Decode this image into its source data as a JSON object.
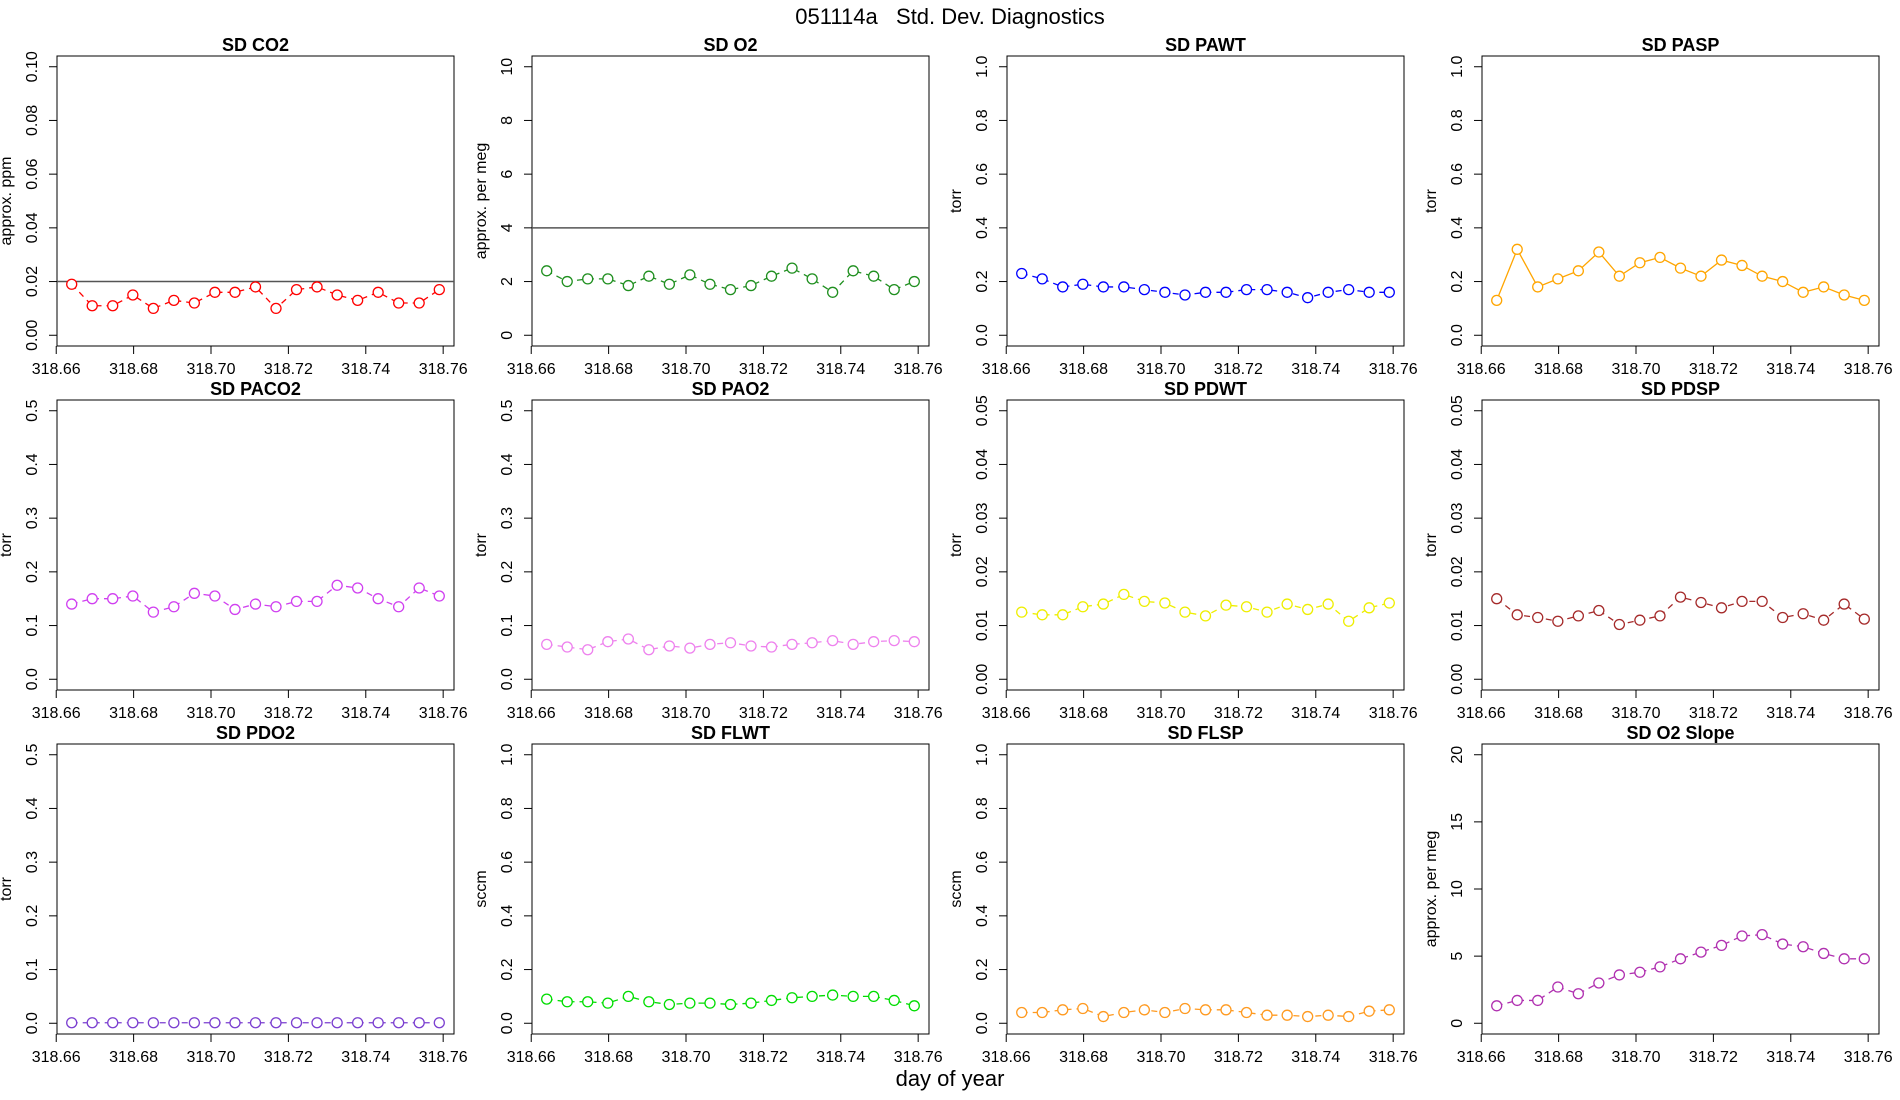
{
  "title": "051114a   Std. Dev. Diagnostics",
  "x_label": "day of year",
  "chart_data": [
    {
      "type": "line",
      "title": "SD CO2",
      "y_label": "approx. ppm",
      "color": "#ff0000",
      "line_style": "dashed",
      "reference_line": 0.02,
      "x": [
        318.664,
        318.6693,
        318.6746,
        318.6798,
        318.6851,
        318.6904,
        318.6957,
        318.701,
        318.7062,
        318.7115,
        318.7168,
        318.7221,
        318.7274,
        318.7326,
        318.7379,
        318.7432,
        318.7485,
        318.7538,
        318.759
      ],
      "values": [
        0.019,
        0.011,
        0.011,
        0.015,
        0.01,
        0.013,
        0.012,
        0.016,
        0.016,
        0.018,
        0.01,
        0.017,
        0.018,
        0.015,
        0.013,
        0.016,
        0.012,
        0.012,
        0.017
      ],
      "xlim": [
        318.6602,
        318.7628
      ],
      "xticks": [
        318.66,
        318.68,
        {
          "value": 318.7,
          "label": "318.70"
        },
        318.72,
        318.74,
        318.76
      ],
      "ylim": [
        -0.004,
        0.104
      ],
      "yticks": [
        {
          "value": 0,
          "label": "0.00"
        },
        0.02,
        0.04,
        0.06,
        0.08,
        {
          "value": 0.1,
          "label": "0.10"
        }
      ]
    },
    {
      "type": "line",
      "title": "SD O2",
      "y_label": "approx. per meg",
      "color": "#1f8f1f",
      "line_style": "dashed",
      "reference_line": 4,
      "x": [
        318.664,
        318.6693,
        318.6746,
        318.6798,
        318.6851,
        318.6904,
        318.6957,
        318.701,
        318.7062,
        318.7115,
        318.7168,
        318.7221,
        318.7274,
        318.7326,
        318.7379,
        318.7432,
        318.7485,
        318.7538,
        318.759
      ],
      "values": [
        2.4,
        2.0,
        2.1,
        2.1,
        1.85,
        2.2,
        1.9,
        2.25,
        1.9,
        1.7,
        1.85,
        2.2,
        2.5,
        2.1,
        1.6,
        2.4,
        2.2,
        1.7,
        2.0
      ],
      "xlim": [
        318.6602,
        318.7628
      ],
      "xticks": [
        318.66,
        318.68,
        {
          "value": 318.7,
          "label": "318.70"
        },
        318.72,
        318.74,
        318.76
      ],
      "ylim": [
        -0.4,
        10.4
      ],
      "yticks": [
        0,
        2,
        4,
        6,
        8,
        10
      ]
    },
    {
      "type": "line",
      "title": "SD PAWT",
      "y_label": "torr",
      "color": "#0000ff",
      "line_style": "dashed",
      "x": [
        318.664,
        318.6693,
        318.6746,
        318.6798,
        318.6851,
        318.6904,
        318.6957,
        318.701,
        318.7062,
        318.7115,
        318.7168,
        318.7221,
        318.7274,
        318.7326,
        318.7379,
        318.7432,
        318.7485,
        318.7538,
        318.759
      ],
      "values": [
        0.23,
        0.21,
        0.18,
        0.19,
        0.18,
        0.18,
        0.17,
        0.16,
        0.15,
        0.16,
        0.16,
        0.17,
        0.17,
        0.16,
        0.14,
        0.16,
        0.17,
        0.16,
        0.16
      ],
      "xlim": [
        318.6602,
        318.7628
      ],
      "xticks": [
        318.66,
        318.68,
        {
          "value": 318.7,
          "label": "318.70"
        },
        318.72,
        318.74,
        318.76
      ],
      "ylim": [
        -0.04,
        1.04
      ],
      "yticks": [
        {
          "value": 0,
          "label": "0.0"
        },
        0.2,
        0.4,
        0.6,
        0.8,
        {
          "value": 1,
          "label": "1.0"
        }
      ]
    },
    {
      "type": "line",
      "title": "SD PASP",
      "y_label": "torr",
      "color": "#ffa500",
      "line_style": "solid",
      "x": [
        318.664,
        318.6693,
        318.6746,
        318.6798,
        318.6851,
        318.6904,
        318.6957,
        318.701,
        318.7062,
        318.7115,
        318.7168,
        318.7221,
        318.7274,
        318.7326,
        318.7379,
        318.7432,
        318.7485,
        318.7538,
        318.759
      ],
      "values": [
        0.13,
        0.32,
        0.18,
        0.21,
        0.24,
        0.31,
        0.22,
        0.27,
        0.29,
        0.25,
        0.22,
        0.28,
        0.26,
        0.22,
        0.2,
        0.16,
        0.18,
        0.15,
        0.13
      ],
      "xlim": [
        318.6602,
        318.7628
      ],
      "xticks": [
        318.66,
        318.68,
        {
          "value": 318.7,
          "label": "318.70"
        },
        318.72,
        318.74,
        318.76
      ],
      "ylim": [
        -0.04,
        1.04
      ],
      "yticks": [
        {
          "value": 0,
          "label": "0.0"
        },
        0.2,
        0.4,
        0.6,
        0.8,
        {
          "value": 1,
          "label": "1.0"
        }
      ]
    },
    {
      "type": "line",
      "title": "SD PACO2",
      "y_label": "torr",
      "color": "#d040f0",
      "line_style": "dashed",
      "x": [
        318.664,
        318.6693,
        318.6746,
        318.6798,
        318.6851,
        318.6904,
        318.6957,
        318.701,
        318.7062,
        318.7115,
        318.7168,
        318.7221,
        318.7274,
        318.7326,
        318.7379,
        318.7432,
        318.7485,
        318.7538,
        318.759
      ],
      "values": [
        0.14,
        0.15,
        0.15,
        0.155,
        0.125,
        0.135,
        0.16,
        0.155,
        0.13,
        0.14,
        0.135,
        0.145,
        0.145,
        0.175,
        0.17,
        0.15,
        0.135,
        0.17,
        0.155
      ],
      "xlim": [
        318.6602,
        318.7628
      ],
      "xticks": [
        318.66,
        318.68,
        {
          "value": 318.7,
          "label": "318.70"
        },
        318.72,
        318.74,
        318.76
      ],
      "ylim": [
        -0.02,
        0.52
      ],
      "yticks": [
        {
          "value": 0,
          "label": "0.0"
        },
        0.1,
        0.2,
        0.3,
        0.4,
        0.5
      ]
    },
    {
      "type": "line",
      "title": "SD PAO2",
      "y_label": "torr",
      "color": "#ee82ee",
      "line_style": "dashed",
      "x": [
        318.664,
        318.6693,
        318.6746,
        318.6798,
        318.6851,
        318.6904,
        318.6957,
        318.701,
        318.7062,
        318.7115,
        318.7168,
        318.7221,
        318.7274,
        318.7326,
        318.7379,
        318.7432,
        318.7485,
        318.7538,
        318.759
      ],
      "values": [
        0.065,
        0.06,
        0.055,
        0.07,
        0.075,
        0.055,
        0.062,
        0.058,
        0.065,
        0.068,
        0.062,
        0.06,
        0.065,
        0.068,
        0.072,
        0.065,
        0.07,
        0.072,
        0.07
      ],
      "xlim": [
        318.6602,
        318.7628
      ],
      "xticks": [
        318.66,
        318.68,
        {
          "value": 318.7,
          "label": "318.70"
        },
        318.72,
        318.74,
        318.76
      ],
      "ylim": [
        -0.02,
        0.52
      ],
      "yticks": [
        {
          "value": 0,
          "label": "0.0"
        },
        0.1,
        0.2,
        0.3,
        0.4,
        0.5
      ]
    },
    {
      "type": "line",
      "title": "SD PDWT",
      "y_label": "torr",
      "color": "#eeee00",
      "line_style": "dashed",
      "x": [
        318.664,
        318.6693,
        318.6746,
        318.6798,
        318.6851,
        318.6904,
        318.6957,
        318.701,
        318.7062,
        318.7115,
        318.7168,
        318.7221,
        318.7274,
        318.7326,
        318.7379,
        318.7432,
        318.7485,
        318.7538,
        318.759
      ],
      "values": [
        0.0125,
        0.012,
        0.012,
        0.0135,
        0.014,
        0.0158,
        0.0145,
        0.0142,
        0.0125,
        0.0118,
        0.0138,
        0.0135,
        0.0125,
        0.014,
        0.013,
        0.014,
        0.0108,
        0.0133,
        0.0142
      ],
      "xlim": [
        318.6602,
        318.7628
      ],
      "xticks": [
        318.66,
        318.68,
        {
          "value": 318.7,
          "label": "318.70"
        },
        318.72,
        318.74,
        318.76
      ],
      "ylim": [
        -0.002,
        0.052
      ],
      "yticks": [
        {
          "value": 0,
          "label": "0.00"
        },
        0.01,
        0.02,
        0.03,
        0.04,
        0.05
      ]
    },
    {
      "type": "line",
      "title": "SD PDSP",
      "y_label": "torr",
      "color": "#a52a2a",
      "line_style": "dashed",
      "x": [
        318.664,
        318.6693,
        318.6746,
        318.6798,
        318.6851,
        318.6904,
        318.6957,
        318.701,
        318.7062,
        318.7115,
        318.7168,
        318.7221,
        318.7274,
        318.7326,
        318.7379,
        318.7432,
        318.7485,
        318.7538,
        318.759
      ],
      "values": [
        0.015,
        0.012,
        0.0115,
        0.0108,
        0.0118,
        0.0128,
        0.0102,
        0.011,
        0.0118,
        0.0153,
        0.0143,
        0.0133,
        0.0145,
        0.0145,
        0.0115,
        0.0122,
        0.011,
        0.014,
        0.0112
      ],
      "xlim": [
        318.6602,
        318.7628
      ],
      "xticks": [
        318.66,
        318.68,
        {
          "value": 318.7,
          "label": "318.70"
        },
        318.72,
        318.74,
        318.76
      ],
      "ylim": [
        -0.002,
        0.052
      ],
      "yticks": [
        {
          "value": 0,
          "label": "0.00"
        },
        0.01,
        0.02,
        0.03,
        0.04,
        0.05
      ]
    },
    {
      "type": "line",
      "title": "SD PDO2",
      "y_label": "torr",
      "color": "#7b3fd0",
      "line_style": "dashed",
      "x": [
        318.664,
        318.6693,
        318.6746,
        318.6798,
        318.6851,
        318.6904,
        318.6957,
        318.701,
        318.7062,
        318.7115,
        318.7168,
        318.7221,
        318.7274,
        318.7326,
        318.7379,
        318.7432,
        318.7485,
        318.7538,
        318.759
      ],
      "values": [
        0.001,
        0.001,
        0.001,
        0.001,
        0.001,
        0.001,
        0.001,
        0.001,
        0.001,
        0.001,
        0.001,
        0.001,
        0.001,
        0.001,
        0.001,
        0.001,
        0.001,
        0.001,
        0.001
      ],
      "xlim": [
        318.6602,
        318.7628
      ],
      "xticks": [
        318.66,
        318.68,
        {
          "value": 318.7,
          "label": "318.70"
        },
        318.72,
        318.74,
        318.76
      ],
      "ylim": [
        -0.02,
        0.52
      ],
      "yticks": [
        {
          "value": 0,
          "label": "0.0"
        },
        0.1,
        0.2,
        0.3,
        0.4,
        0.5
      ]
    },
    {
      "type": "line",
      "title": "SD FLWT",
      "y_label": "sccm",
      "color": "#00dd00",
      "line_style": "dashed",
      "x": [
        318.664,
        318.6693,
        318.6746,
        318.6798,
        318.6851,
        318.6904,
        318.6957,
        318.701,
        318.7062,
        318.7115,
        318.7168,
        318.7221,
        318.7274,
        318.7326,
        318.7379,
        318.7432,
        318.7485,
        318.7538,
        318.759
      ],
      "values": [
        0.09,
        0.08,
        0.08,
        0.075,
        0.1,
        0.08,
        0.07,
        0.075,
        0.075,
        0.07,
        0.075,
        0.085,
        0.095,
        0.1,
        0.105,
        0.1,
        0.1,
        0.085,
        0.065
      ],
      "xlim": [
        318.6602,
        318.7628
      ],
      "xticks": [
        318.66,
        318.68,
        {
          "value": 318.7,
          "label": "318.70"
        },
        318.72,
        318.74,
        318.76
      ],
      "ylim": [
        -0.04,
        1.04
      ],
      "yticks": [
        {
          "value": 0,
          "label": "0.0"
        },
        0.2,
        0.4,
        0.6,
        0.8,
        {
          "value": 1,
          "label": "1.0"
        }
      ]
    },
    {
      "type": "line",
      "title": "SD FLSP",
      "y_label": "sccm",
      "color": "#ff9a20",
      "line_style": "dashed",
      "x": [
        318.664,
        318.6693,
        318.6746,
        318.6798,
        318.6851,
        318.6904,
        318.6957,
        318.701,
        318.7062,
        318.7115,
        318.7168,
        318.7221,
        318.7274,
        318.7326,
        318.7379,
        318.7432,
        318.7485,
        318.7538,
        318.759
      ],
      "values": [
        0.04,
        0.04,
        0.05,
        0.055,
        0.025,
        0.04,
        0.05,
        0.04,
        0.055,
        0.05,
        0.05,
        0.04,
        0.03,
        0.03,
        0.025,
        0.03,
        0.025,
        0.045,
        0.05
      ],
      "xlim": [
        318.6602,
        318.7628
      ],
      "xticks": [
        318.66,
        318.68,
        {
          "value": 318.7,
          "label": "318.70"
        },
        318.72,
        318.74,
        318.76
      ],
      "ylim": [
        -0.04,
        1.04
      ],
      "yticks": [
        {
          "value": 0,
          "label": "0.0"
        },
        0.2,
        0.4,
        0.6,
        0.8,
        {
          "value": 1,
          "label": "1.0"
        }
      ]
    },
    {
      "type": "line",
      "title": "SD O2 Slope",
      "y_label": "approx. per meg",
      "color": "#b030b0",
      "line_style": "dashed",
      "x": [
        318.664,
        318.6693,
        318.6746,
        318.6798,
        318.6851,
        318.6904,
        318.6957,
        318.701,
        318.7062,
        318.7115,
        318.7168,
        318.7221,
        318.7274,
        318.7326,
        318.7379,
        318.7432,
        318.7485,
        318.7538,
        318.759
      ],
      "values": [
        1.3,
        1.7,
        1.7,
        2.7,
        2.2,
        3.0,
        3.6,
        3.8,
        4.2,
        4.8,
        5.3,
        5.8,
        6.5,
        6.6,
        5.9,
        5.7,
        5.2,
        4.8,
        4.8
      ],
      "xlim": [
        318.6602,
        318.7628
      ],
      "xticks": [
        318.66,
        318.68,
        {
          "value": 318.7,
          "label": "318.70"
        },
        318.72,
        318.74,
        318.76
      ],
      "ylim": [
        -0.8,
        20.8
      ],
      "yticks": [
        0,
        5,
        10,
        15,
        20
      ]
    }
  ]
}
